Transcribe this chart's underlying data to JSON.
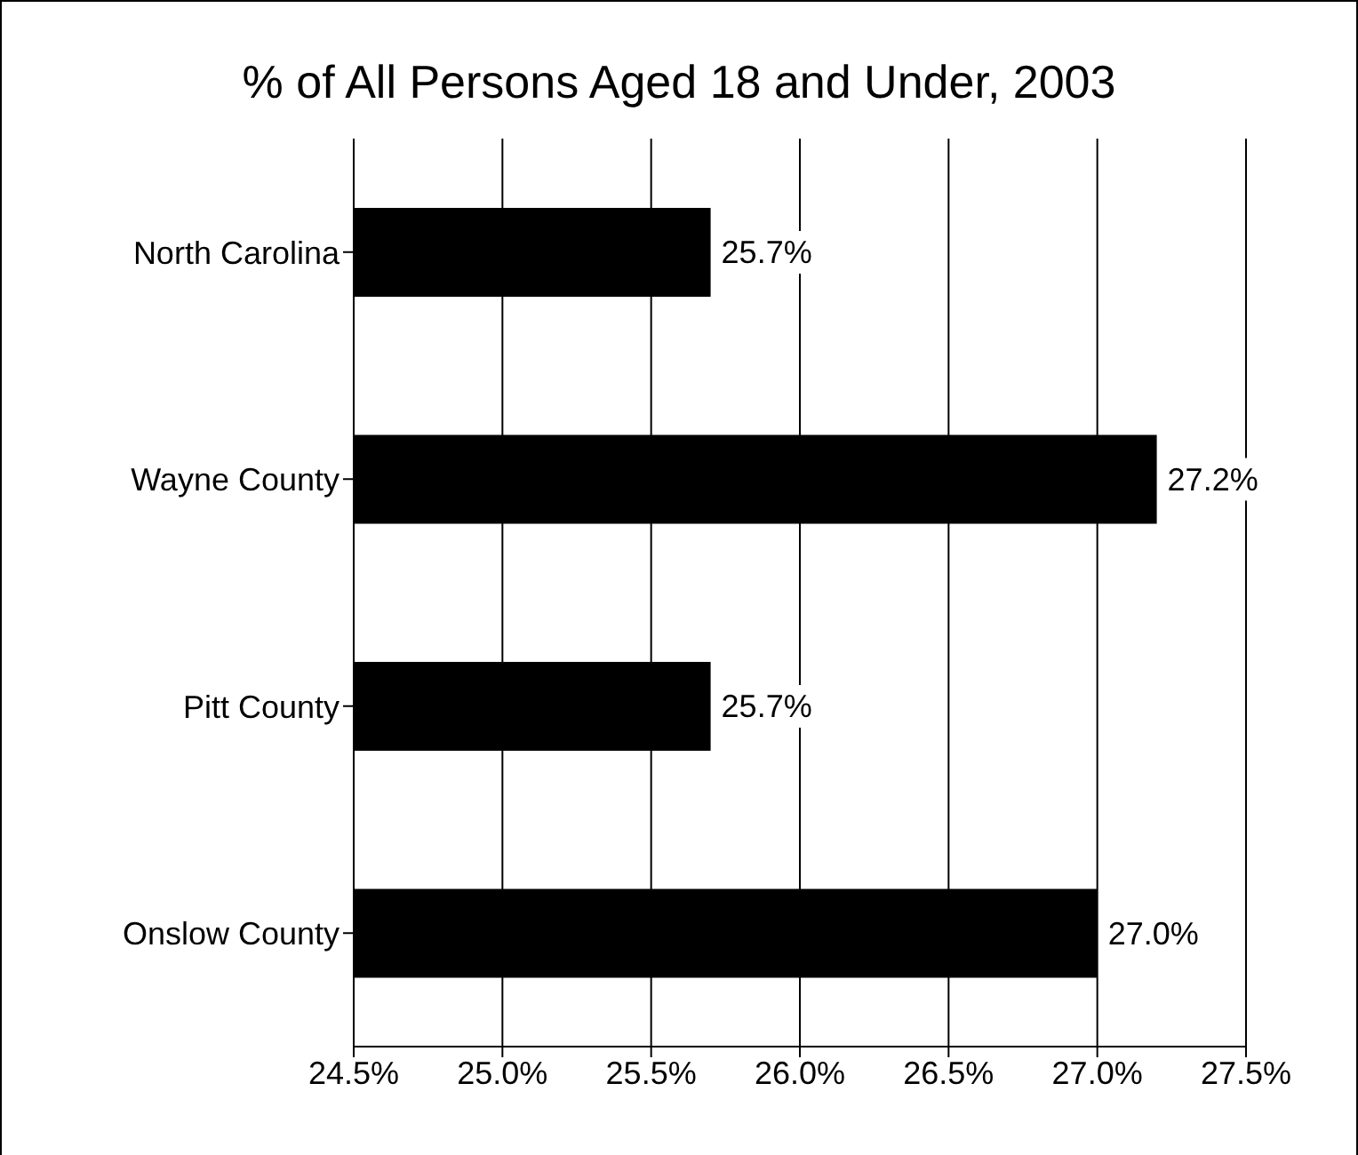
{
  "chart_data": {
    "type": "bar",
    "orientation": "horizontal",
    "title": "% of All Persons Aged 18 and Under, 2003",
    "categories": [
      "North Carolina",
      "Wayne County",
      "Pitt County",
      "Onslow County"
    ],
    "values": [
      25.7,
      27.2,
      25.7,
      27.0
    ],
    "value_labels": [
      "25.7%",
      "27.2%",
      "25.7%",
      "27.0%"
    ],
    "color": "#000000",
    "xlim": [
      24.5,
      27.5
    ],
    "xticks": [
      {
        "value": 24.5,
        "label": "24.5%"
      },
      {
        "value": 25.0,
        "label": "25.0%"
      },
      {
        "value": 25.5,
        "label": "25.5%"
      },
      {
        "value": 26.0,
        "label": "26.0%"
      },
      {
        "value": 26.5,
        "label": "26.5%"
      },
      {
        "value": 27.0,
        "label": "27.0%"
      },
      {
        "value": 27.5,
        "label": "27.5%"
      }
    ],
    "grid": "x"
  }
}
